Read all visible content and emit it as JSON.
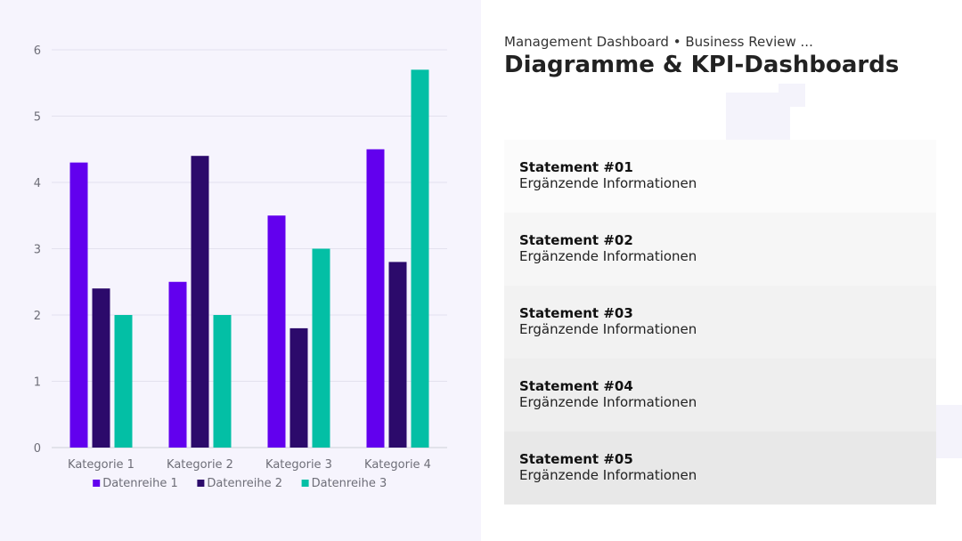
{
  "header": {
    "subtitle": "Management Dashboard • Business Review ...",
    "title": "Diagramme & KPI-Dashboards"
  },
  "statements": [
    {
      "title": "Statement #01",
      "subtitle": "Ergänzende Informationen",
      "bg": "#fbfbfb"
    },
    {
      "title": "Statement #02",
      "subtitle": "Ergänzende Informationen",
      "bg": "#f6f6f6"
    },
    {
      "title": "Statement #03",
      "subtitle": "Ergänzende Informationen",
      "bg": "#f2f2f2"
    },
    {
      "title": "Statement #04",
      "subtitle": "Ergänzende Informationen",
      "bg": "#eeeeee"
    },
    {
      "title": "Statement #05",
      "subtitle": "Ergänzende Informationen",
      "bg": "#e8e8e8"
    }
  ],
  "chart_data": {
    "type": "bar",
    "categories": [
      "Kategorie 1",
      "Kategorie 2",
      "Kategorie 3",
      "Kategorie 4"
    ],
    "series": [
      {
        "name": "Datenreihe 1",
        "color": "#6200ee",
        "values": [
          4.3,
          2.5,
          3.5,
          4.5
        ]
      },
      {
        "name": "Datenreihe 2",
        "color": "#2c0a6b",
        "values": [
          2.4,
          4.4,
          1.8,
          2.8
        ]
      },
      {
        "name": "Datenreihe 3",
        "color": "#03bfa5",
        "values": [
          2.0,
          2.0,
          3.0,
          5.7
        ]
      }
    ],
    "ylim": [
      0,
      6
    ],
    "yticks": [
      "0",
      "1",
      "2",
      "3",
      "4",
      "5",
      "6"
    ],
    "grid": true,
    "legend_position": "bottom"
  }
}
